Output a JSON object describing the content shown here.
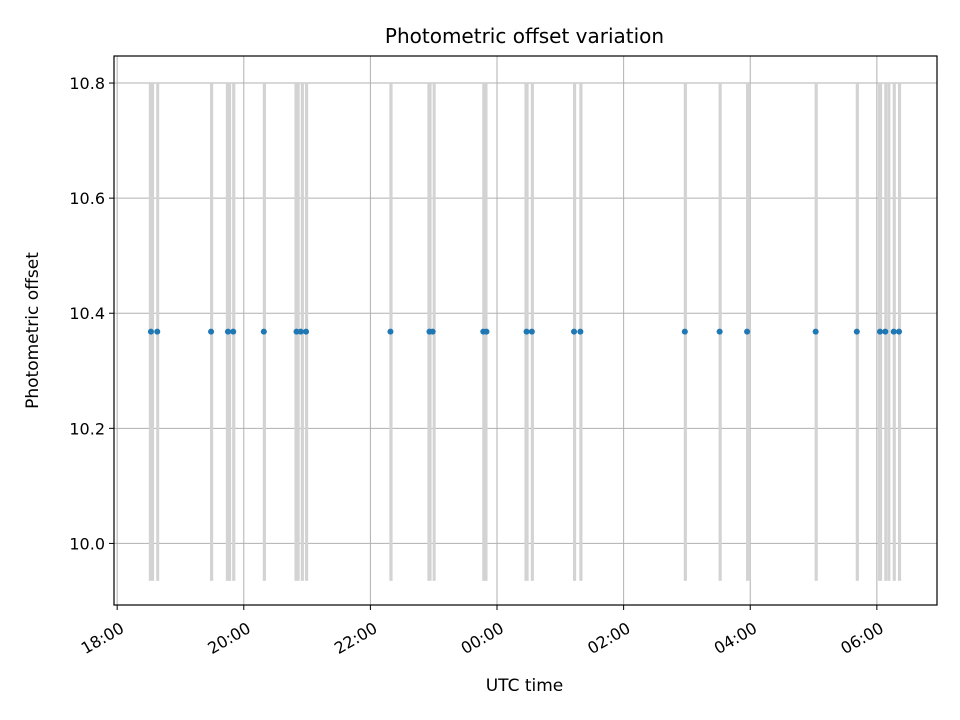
{
  "chart_data": {
    "type": "scatter",
    "title": "Photometric offset variation",
    "xlabel": "UTC time",
    "ylabel": "Photometric offset",
    "x_ticks": [
      "18:00",
      "20:00",
      "22:00",
      "00:00",
      "02:00",
      "04:00",
      "06:00"
    ],
    "x_tick_hours": [
      0,
      2,
      4,
      6,
      8,
      10,
      12
    ],
    "y_ticks": [
      "10.0",
      "10.2",
      "10.4",
      "10.6",
      "10.8"
    ],
    "y_tick_values": [
      10.0,
      10.2,
      10.4,
      10.6,
      10.8
    ],
    "xlim_hours": [
      -0.05,
      12.95
    ],
    "ylim": [
      9.893,
      10.847
    ],
    "grid": true,
    "point_color": "#1f77b4",
    "band_color": "#d3d3d3",
    "band_y_range": [
      9.935,
      10.8
    ],
    "series": [
      {
        "x": [
          "18:32",
          "18:38",
          "19:29",
          "19:45",
          "19:50",
          "20:19",
          "20:50",
          "20:54",
          "20:59",
          "22:19",
          "22:56",
          "22:59",
          "23:47",
          "23:50",
          "00:28",
          "00:33",
          "01:13",
          "01:19",
          "02:58",
          "03:31",
          "03:57",
          "05:02",
          "05:41",
          "06:03",
          "06:08",
          "06:16",
          "06:21"
        ],
        "y": [
          10.368,
          10.368,
          10.368,
          10.368,
          10.368,
          10.368,
          10.368,
          10.368,
          10.368,
          10.368,
          10.368,
          10.368,
          10.368,
          10.368,
          10.368,
          10.368,
          10.368,
          10.368,
          10.368,
          10.368,
          10.368,
          10.368,
          10.368,
          10.368,
          10.368,
          10.368,
          10.368
        ]
      }
    ],
    "bands": [
      [
        "18:30",
        "18:35"
      ],
      [
        "18:37",
        "18:39"
      ],
      [
        "19:28",
        "19:31"
      ],
      [
        "19:43",
        "19:48"
      ],
      [
        "19:49",
        "19:52"
      ],
      [
        "20:18",
        "20:21"
      ],
      [
        "20:48",
        "20:53"
      ],
      [
        "20:54",
        "20:57"
      ],
      [
        "20:58",
        "21:01"
      ],
      [
        "22:18",
        "22:21"
      ],
      [
        "22:54",
        "22:58"
      ],
      [
        "22:59",
        "23:01"
      ],
      [
        "23:46",
        "23:51"
      ],
      [
        "00:26",
        "00:30"
      ],
      [
        "00:32",
        "00:35"
      ],
      [
        "01:12",
        "01:15"
      ],
      [
        "01:18",
        "01:21"
      ],
      [
        "02:57",
        "03:00"
      ],
      [
        "03:30",
        "03:33"
      ],
      [
        "03:56",
        "04:00"
      ],
      [
        "05:01",
        "05:04"
      ],
      [
        "05:40",
        "05:43"
      ],
      [
        "06:01",
        "06:05"
      ],
      [
        "06:07",
        "06:09"
      ],
      [
        "06:10",
        "06:12"
      ],
      [
        "06:15",
        "06:18"
      ],
      [
        "06:20",
        "06:23"
      ]
    ]
  }
}
